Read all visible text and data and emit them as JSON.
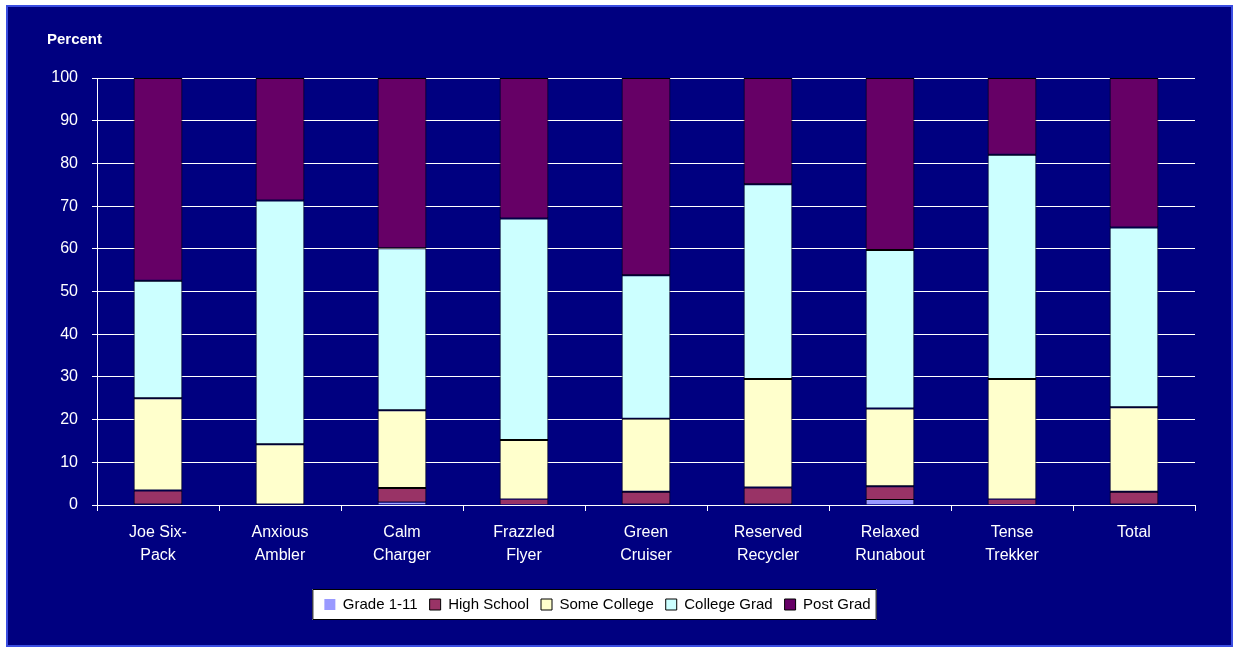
{
  "chart_data": {
    "type": "bar",
    "stacked": true,
    "ylabel": "Percent",
    "categories": [
      "Joe Six-Pack",
      "Anxious Ambler",
      "Calm Charger",
      "Frazzled Flyer",
      "Green Cruiser",
      "Reserved Recycler",
      "Relaxed Runabout",
      "Tense Trekker",
      "Total"
    ],
    "series": [
      {
        "name": "Grade 1-11",
        "color": "#9999ff",
        "values": [
          0,
          0,
          0.6,
          0,
          0,
          0,
          1.2,
          0,
          0
        ]
      },
      {
        "name": "High School",
        "color": "#993366",
        "values": [
          3.4,
          0,
          3.4,
          1.3,
          3.1,
          4.1,
          3.2,
          1.3,
          3.1
        ]
      },
      {
        "name": "Some College",
        "color": "#ffffcc",
        "values": [
          21.6,
          14.2,
          18.2,
          13.9,
          17.1,
          25.4,
          18.2,
          28.2,
          19.8
        ]
      },
      {
        "name": "College Grad",
        "color": "#ccffff",
        "values": [
          27.5,
          57.1,
          37.9,
          51.9,
          33.6,
          45.6,
          37.1,
          52.5,
          42.1
        ]
      },
      {
        "name": "Post Grad",
        "color": "#660066",
        "values": [
          47.5,
          28.7,
          39.9,
          32.9,
          46.2,
          24.9,
          40.3,
          18.0,
          35.0
        ]
      }
    ],
    "ylim": [
      0,
      100
    ],
    "yticks": [
      0,
      10,
      20,
      30,
      40,
      50,
      60,
      70,
      80,
      90,
      100
    ],
    "grid": "y",
    "legend": "bottom"
  }
}
